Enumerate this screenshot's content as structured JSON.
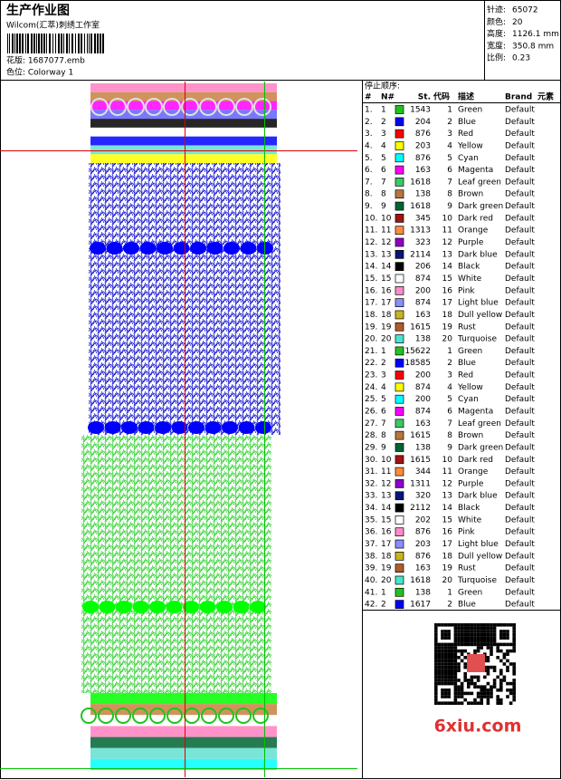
{
  "header": {
    "title": "生产作业图",
    "company": "Wilcom(汇萃)刺绣工作室",
    "design": "花版: 1687077.emb",
    "colorway": "色位: Colorway 1"
  },
  "stats": [
    [
      "针迹:",
      "65072"
    ],
    [
      "颜色:",
      "20"
    ],
    [
      "高度:",
      "1126.1 mm"
    ],
    [
      "宽度:",
      "350.8 mm"
    ],
    [
      "比例:",
      "0.23"
    ]
  ],
  "stop_sequence": {
    "title": "停止顺序:",
    "columns": [
      "#",
      "N#",
      "St.",
      "代码",
      "描述",
      "Brand",
      "元素"
    ],
    "rows": [
      [
        "1.",
        1,
        "#1ec41e",
        1543,
        1,
        "Green",
        "Default"
      ],
      [
        "2.",
        2,
        "#0000ff",
        204,
        2,
        "Blue",
        "Default"
      ],
      [
        "3.",
        3,
        "#ff0000",
        876,
        3,
        "Red",
        "Default"
      ],
      [
        "4.",
        4,
        "#ffff00",
        203,
        4,
        "Yellow",
        "Default"
      ],
      [
        "5.",
        5,
        "#00ffff",
        876,
        5,
        "Cyan",
        "Default"
      ],
      [
        "6.",
        6,
        "#ff00ff",
        163,
        6,
        "Magenta",
        "Default"
      ],
      [
        "7.",
        7,
        "#3cc864",
        1618,
        7,
        "Leaf green",
        "Default"
      ],
      [
        "8.",
        8,
        "#b4783c",
        138,
        8,
        "Brown",
        "Default"
      ],
      [
        "9.",
        9,
        "#006432",
        1618,
        9,
        "Dark green",
        "Default"
      ],
      [
        "10.",
        10,
        "#a01414",
        345,
        10,
        "Dark red",
        "Default"
      ],
      [
        "11.",
        11,
        "#ff8c3c",
        1313,
        11,
        "Orange",
        "Default"
      ],
      [
        "12.",
        12,
        "#8c00c8",
        323,
        12,
        "Purple",
        "Default"
      ],
      [
        "13.",
        13,
        "#0a1478",
        2114,
        13,
        "Dark blue",
        "Default"
      ],
      [
        "14.",
        14,
        "#000000",
        206,
        14,
        "Black",
        "Default"
      ],
      [
        "15.",
        15,
        "#ffffff",
        874,
        15,
        "White",
        "Default"
      ],
      [
        "16.",
        16,
        "#ff8cc8",
        200,
        16,
        "Pink",
        "Default"
      ],
      [
        "17.",
        17,
        "#8c8cff",
        874,
        17,
        "Light blue",
        "Default"
      ],
      [
        "18.",
        18,
        "#c8b41e",
        163,
        18,
        "Dull yellow",
        "Default"
      ],
      [
        "19.",
        19,
        "#b45a28",
        1615,
        19,
        "Rust",
        "Default"
      ],
      [
        "20.",
        20,
        "#46e6c8",
        138,
        20,
        "Turquoise",
        "Default"
      ],
      [
        "21.",
        1,
        "#1ec41e",
        15622,
        1,
        "Green",
        "Default"
      ],
      [
        "22.",
        2,
        "#0000ff",
        18585,
        2,
        "Blue",
        "Default"
      ],
      [
        "23.",
        3,
        "#ff0000",
        200,
        3,
        "Red",
        "Default"
      ],
      [
        "24.",
        4,
        "#ffff00",
        874,
        4,
        "Yellow",
        "Default"
      ],
      [
        "25.",
        5,
        "#00ffff",
        200,
        5,
        "Cyan",
        "Default"
      ],
      [
        "26.",
        6,
        "#ff00ff",
        874,
        6,
        "Magenta",
        "Default"
      ],
      [
        "27.",
        7,
        "#3cc864",
        163,
        7,
        "Leaf green",
        "Default"
      ],
      [
        "28.",
        8,
        "#b4783c",
        1615,
        8,
        "Brown",
        "Default"
      ],
      [
        "29.",
        9,
        "#006432",
        138,
        9,
        "Dark green",
        "Default"
      ],
      [
        "30.",
        10,
        "#a01414",
        1615,
        10,
        "Dark red",
        "Default"
      ],
      [
        "31.",
        11,
        "#ff8c3c",
        344,
        11,
        "Orange",
        "Default"
      ],
      [
        "32.",
        12,
        "#8c00c8",
        1311,
        12,
        "Purple",
        "Default"
      ],
      [
        "33.",
        13,
        "#0a1478",
        320,
        13,
        "Dark blue",
        "Default"
      ],
      [
        "34.",
        14,
        "#000000",
        2112,
        14,
        "Black",
        "Default"
      ],
      [
        "35.",
        15,
        "#ffffff",
        202,
        15,
        "White",
        "Default"
      ],
      [
        "36.",
        16,
        "#ff8cc8",
        876,
        16,
        "Pink",
        "Default"
      ],
      [
        "37.",
        17,
        "#8c8cff",
        203,
        17,
        "Light blue",
        "Default"
      ],
      [
        "38.",
        18,
        "#c8b41e",
        876,
        18,
        "Dull yellow",
        "Default"
      ],
      [
        "39.",
        19,
        "#b45a28",
        163,
        19,
        "Rust",
        "Default"
      ],
      [
        "40.",
        20,
        "#46e6c8",
        1618,
        20,
        "Turquoise",
        "Default"
      ],
      [
        "41.",
        1,
        "#1ec41e",
        138,
        1,
        "Green",
        "Default"
      ],
      [
        "42.",
        2,
        "#0000ff",
        1617,
        2,
        "Blue",
        "Default"
      ]
    ]
  },
  "watermark": "6xiu.com"
}
